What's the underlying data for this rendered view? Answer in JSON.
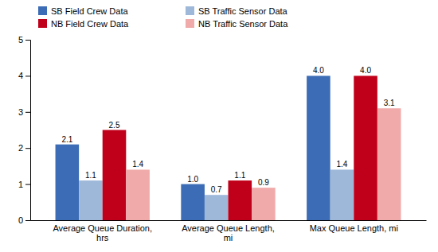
{
  "chart_data": {
    "type": "bar",
    "categories": [
      "Average Queue Duration,\nhrs",
      "Average Queue Length,\nmi",
      "Max Queue Length, mi"
    ],
    "series": [
      {
        "name": "SB Field Crew Data",
        "color": "#3B6CB5",
        "values": [
          2.1,
          1.0,
          4.0
        ],
        "value_labels": [
          "2.1",
          "1.0",
          "4.0"
        ]
      },
      {
        "name": "SB Traffic Sensor Data",
        "color": "#9DB8D9",
        "values": [
          1.1,
          0.7,
          1.4
        ],
        "value_labels": [
          "1.1",
          "0.7",
          "1.4"
        ]
      },
      {
        "name": "NB Field Crew Data",
        "color": "#C0001A",
        "values": [
          2.5,
          1.1,
          4.0
        ],
        "value_labels": [
          "2.5",
          "1.1",
          "4.0"
        ]
      },
      {
        "name": "NB Traffic Sensor Data",
        "color": "#F0AAAA",
        "values": [
          1.4,
          0.9,
          3.1
        ],
        "value_labels": [
          "1.4",
          "0.9",
          "3.1"
        ]
      }
    ],
    "ylim": [
      0,
      5
    ],
    "yticks": [
      0,
      1,
      2,
      3,
      4,
      5
    ],
    "grid": false,
    "legend": "top",
    "data_labels": true
  }
}
